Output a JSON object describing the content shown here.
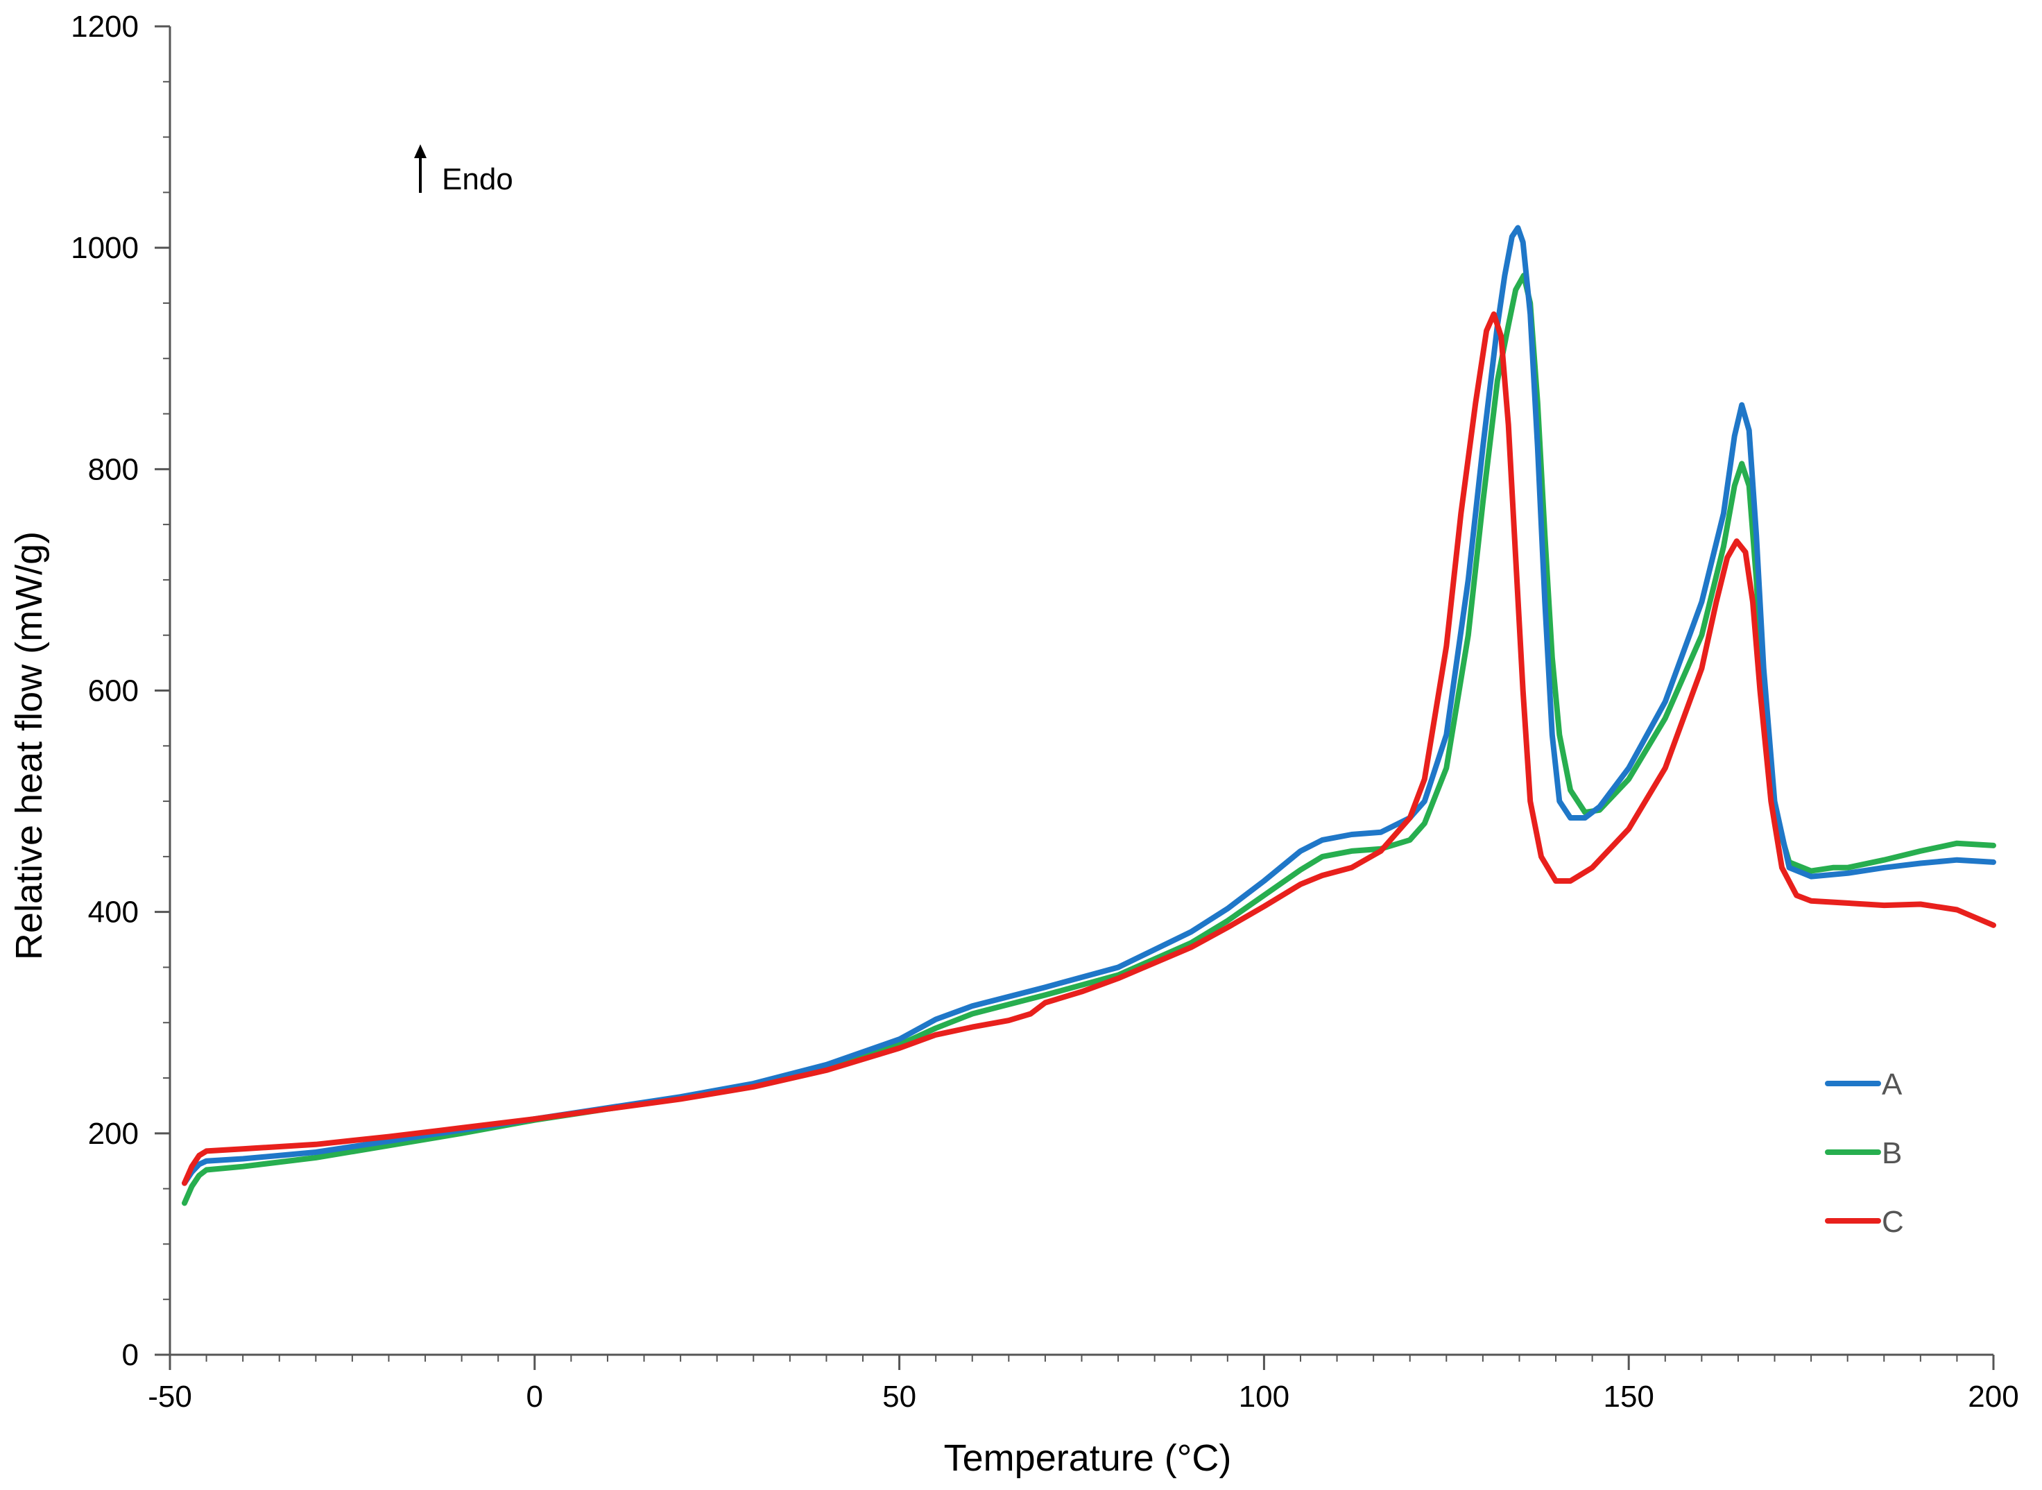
{
  "chart_data": {
    "type": "line",
    "title": "",
    "xlabel": "Temperature (°C)",
    "ylabel": "Relative heat flow (mW/g)",
    "xlim": [
      -50,
      200
    ],
    "ylim": [
      0,
      1200
    ],
    "xticks": [
      -50,
      0,
      50,
      100,
      150,
      200
    ],
    "yticks": [
      0,
      200,
      400,
      600,
      800,
      1000,
      1200
    ],
    "xtick_labels": [
      "-50",
      "0",
      "50",
      "100",
      "150",
      "200"
    ],
    "ytick_labels": [
      "0",
      "200",
      "400",
      "600",
      "800",
      "1000",
      "1200"
    ],
    "x_minor_step": 5,
    "y_minor_step": 50,
    "grid": false,
    "legend_position": "bottom-right",
    "annotation": {
      "text": "Endo",
      "symbol": "↑",
      "meaning": "endothermic direction up"
    },
    "series": [
      {
        "name": "A",
        "color": "#1f77c8",
        "points": [
          [
            -48,
            155
          ],
          [
            -47,
            165
          ],
          [
            -46,
            172
          ],
          [
            -45,
            175
          ],
          [
            -40,
            177
          ],
          [
            -30,
            183
          ],
          [
            -20,
            193
          ],
          [
            -10,
            203
          ],
          [
            0,
            213
          ],
          [
            10,
            223
          ],
          [
            20,
            233
          ],
          [
            30,
            245
          ],
          [
            40,
            262
          ],
          [
            50,
            285
          ],
          [
            55,
            303
          ],
          [
            60,
            315
          ],
          [
            70,
            332
          ],
          [
            80,
            350
          ],
          [
            90,
            382
          ],
          [
            95,
            403
          ],
          [
            100,
            428
          ],
          [
            105,
            455
          ],
          [
            108,
            465
          ],
          [
            112,
            470
          ],
          [
            116,
            472
          ],
          [
            120,
            485
          ],
          [
            122,
            500
          ],
          [
            125,
            560
          ],
          [
            128,
            700
          ],
          [
            130,
            820
          ],
          [
            132,
            930
          ],
          [
            133,
            975
          ],
          [
            134,
            1010
          ],
          [
            134.8,
            1018
          ],
          [
            135.5,
            1005
          ],
          [
            136.5,
            940
          ],
          [
            137.5,
            820
          ],
          [
            138.5,
            680
          ],
          [
            139.5,
            560
          ],
          [
            140.5,
            500
          ],
          [
            142,
            485
          ],
          [
            144,
            485
          ],
          [
            146,
            495
          ],
          [
            150,
            530
          ],
          [
            155,
            590
          ],
          [
            160,
            680
          ],
          [
            163,
            760
          ],
          [
            164.5,
            830
          ],
          [
            165.5,
            858
          ],
          [
            166.5,
            835
          ],
          [
            167.5,
            740
          ],
          [
            168.5,
            620
          ],
          [
            170,
            500
          ],
          [
            172,
            440
          ],
          [
            175,
            432
          ],
          [
            180,
            435
          ],
          [
            185,
            440
          ],
          [
            190,
            444
          ],
          [
            195,
            447
          ],
          [
            200,
            445
          ]
        ]
      },
      {
        "name": "B",
        "color": "#27ae4f",
        "points": [
          [
            -48,
            137
          ],
          [
            -47,
            152
          ],
          [
            -46,
            162
          ],
          [
            -45,
            167
          ],
          [
            -40,
            170
          ],
          [
            -30,
            178
          ],
          [
            -20,
            189
          ],
          [
            -10,
            200
          ],
          [
            0,
            212
          ],
          [
            10,
            222
          ],
          [
            20,
            232
          ],
          [
            30,
            243
          ],
          [
            40,
            258
          ],
          [
            50,
            280
          ],
          [
            55,
            295
          ],
          [
            60,
            308
          ],
          [
            70,
            325
          ],
          [
            80,
            343
          ],
          [
            90,
            372
          ],
          [
            95,
            392
          ],
          [
            100,
            415
          ],
          [
            105,
            438
          ],
          [
            108,
            450
          ],
          [
            112,
            455
          ],
          [
            116,
            457
          ],
          [
            120,
            465
          ],
          [
            122,
            480
          ],
          [
            125,
            530
          ],
          [
            128,
            650
          ],
          [
            130,
            770
          ],
          [
            132,
            880
          ],
          [
            133.5,
            930
          ],
          [
            134.5,
            962
          ],
          [
            135.6,
            975
          ],
          [
            136.5,
            950
          ],
          [
            137.5,
            860
          ],
          [
            138.5,
            740
          ],
          [
            139.5,
            630
          ],
          [
            140.5,
            560
          ],
          [
            142,
            510
          ],
          [
            144,
            490
          ],
          [
            146,
            492
          ],
          [
            150,
            520
          ],
          [
            155,
            575
          ],
          [
            160,
            650
          ],
          [
            163,
            730
          ],
          [
            164.5,
            785
          ],
          [
            165.5,
            805
          ],
          [
            166.5,
            785
          ],
          [
            167.5,
            700
          ],
          [
            168.5,
            590
          ],
          [
            170,
            490
          ],
          [
            172,
            445
          ],
          [
            175,
            437
          ],
          [
            178,
            440
          ],
          [
            180,
            440
          ],
          [
            185,
            447
          ],
          [
            190,
            455
          ],
          [
            195,
            462
          ],
          [
            200,
            460
          ]
        ]
      },
      {
        "name": "C",
        "color": "#e8201c",
        "points": [
          [
            -48,
            155
          ],
          [
            -47,
            170
          ],
          [
            -46,
            180
          ],
          [
            -45,
            184
          ],
          [
            -40,
            186
          ],
          [
            -30,
            190
          ],
          [
            -20,
            197
          ],
          [
            -10,
            205
          ],
          [
            0,
            213
          ],
          [
            10,
            222
          ],
          [
            20,
            231
          ],
          [
            30,
            242
          ],
          [
            40,
            257
          ],
          [
            50,
            277
          ],
          [
            55,
            289
          ],
          [
            60,
            296
          ],
          [
            65,
            302
          ],
          [
            68,
            308
          ],
          [
            70,
            318
          ],
          [
            75,
            328
          ],
          [
            80,
            340
          ],
          [
            90,
            368
          ],
          [
            95,
            386
          ],
          [
            100,
            405
          ],
          [
            105,
            425
          ],
          [
            108,
            433
          ],
          [
            112,
            440
          ],
          [
            116,
            455
          ],
          [
            120,
            485
          ],
          [
            122,
            520
          ],
          [
            125,
            640
          ],
          [
            127,
            760
          ],
          [
            129,
            860
          ],
          [
            130.5,
            925
          ],
          [
            131.5,
            940
          ],
          [
            132.5,
            920
          ],
          [
            133.5,
            840
          ],
          [
            134.5,
            720
          ],
          [
            135.5,
            600
          ],
          [
            136.5,
            500
          ],
          [
            138,
            450
          ],
          [
            140,
            428
          ],
          [
            142,
            428
          ],
          [
            145,
            440
          ],
          [
            150,
            475
          ],
          [
            155,
            530
          ],
          [
            160,
            620
          ],
          [
            162,
            680
          ],
          [
            163.5,
            720
          ],
          [
            164.8,
            735
          ],
          [
            166,
            725
          ],
          [
            167,
            680
          ],
          [
            168,
            600
          ],
          [
            169.5,
            500
          ],
          [
            171,
            440
          ],
          [
            173,
            415
          ],
          [
            175,
            410
          ],
          [
            180,
            408
          ],
          [
            185,
            406
          ],
          [
            190,
            407
          ],
          [
            195,
            402
          ],
          [
            200,
            388
          ]
        ]
      }
    ]
  }
}
